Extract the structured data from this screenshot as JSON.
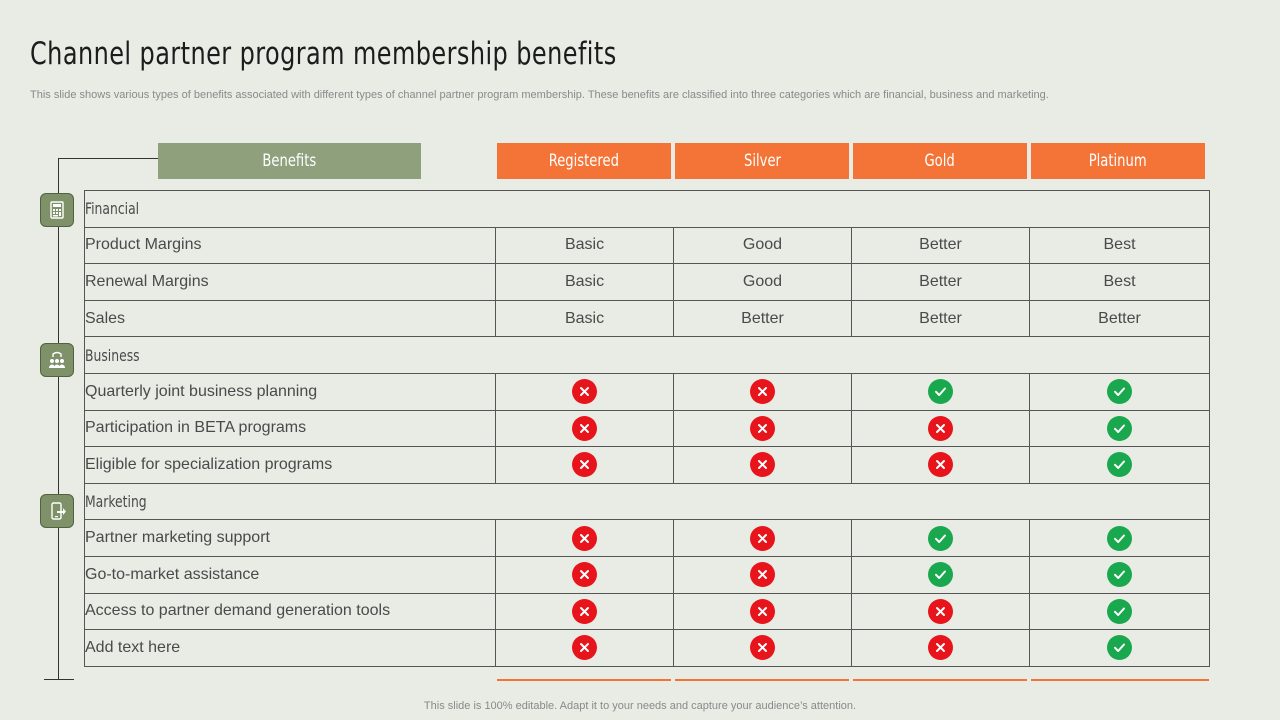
{
  "title": "Channel partner program membership benefits",
  "subtitle": "This slide shows various types of benefits associated with different types of channel partner program membership. These benefits are classified into three categories which are financial, business and marketing.",
  "footer": "This slide is 100% editable. Adapt it to your needs and capture your audience’s attention.",
  "header": {
    "benefits_label": "Benefits",
    "tiers": [
      "Registered",
      "Silver",
      "Gold",
      "Platinum"
    ]
  },
  "colors": {
    "benefits_header": "#8ea07c",
    "tier_header": "#f37436",
    "category_icon": "#7f9169",
    "check": "#1aa84e",
    "cross": "#e8141c"
  },
  "categories": [
    {
      "name": "Financial",
      "icon": "calculator-icon",
      "rows": [
        {
          "label": "Product Margins",
          "values": [
            "Basic",
            "Good",
            "Better",
            "Best"
          ]
        },
        {
          "label": "Renewal Margins",
          "values": [
            "Basic",
            "Good",
            "Better",
            "Best"
          ]
        },
        {
          "label": "Sales",
          "values": [
            "Basic",
            "Better",
            "Better",
            "Better"
          ]
        }
      ]
    },
    {
      "name": "Business",
      "icon": "team-icon",
      "rows": [
        {
          "label": "Quarterly  joint business planning",
          "values": [
            "no",
            "no",
            "yes",
            "yes"
          ]
        },
        {
          "label": "Participation in BETA programs",
          "values": [
            "no",
            "no",
            "no",
            "yes"
          ]
        },
        {
          "label": "Eligible for specialization programs",
          "values": [
            "no",
            "no",
            "no",
            "yes"
          ]
        }
      ]
    },
    {
      "name": "Marketing",
      "icon": "mobile-share-icon",
      "rows": [
        {
          "label": "Partner marketing support",
          "values": [
            "no",
            "no",
            "yes",
            "yes"
          ]
        },
        {
          "label": "Go-to-market assistance",
          "values": [
            "no",
            "no",
            "yes",
            "yes"
          ]
        },
        {
          "label": "Access to partner demand generation tools",
          "values": [
            "no",
            "no",
            "no",
            "yes"
          ]
        },
        {
          "label": "Add text here",
          "values": [
            "no",
            "no",
            "no",
            "yes"
          ]
        }
      ]
    }
  ]
}
